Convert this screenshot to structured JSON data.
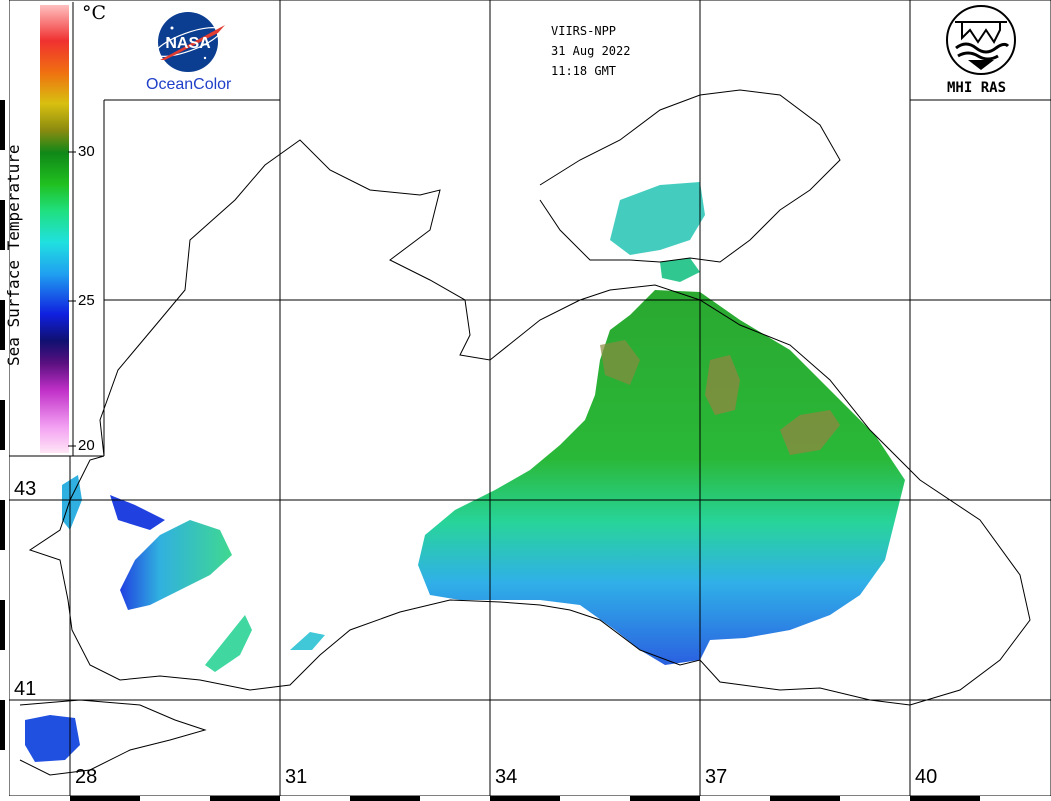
{
  "header": {
    "satellite": "VIIRS-NPP",
    "date": "31 Aug 2022",
    "time": "11:18 GMT"
  },
  "logos": {
    "nasa_seal_text": "NASA",
    "nasa_label": "OceanColor",
    "institute_label": "MHI RAS"
  },
  "colorbar": {
    "unit": "°C",
    "title": "Sea Surface Temperature",
    "ticks": [
      "30",
      "25",
      "20"
    ],
    "min": 20,
    "max": 35,
    "palette": [
      "#ffe6f6",
      "#f29ef2",
      "#c030c8",
      "#5a1080",
      "#101070",
      "#1020e0",
      "#20a0f0",
      "#20e0e0",
      "#20e080",
      "#20c020",
      "#108818",
      "#8a8a10",
      "#d8c010",
      "#f07010",
      "#f03030",
      "#ffc0c0"
    ]
  },
  "grid": {
    "latitudes": [
      "43",
      "41"
    ],
    "longitudes": [
      "28",
      "31",
      "34",
      "37",
      "40"
    ]
  }
}
